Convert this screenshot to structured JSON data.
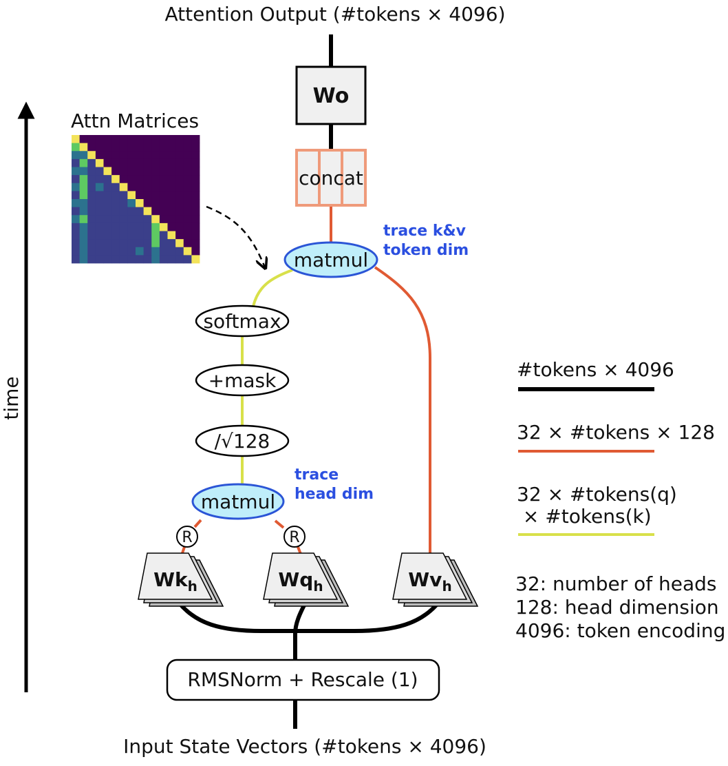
{
  "labels": {
    "output": "Attention Output (#tokens × 4096)",
    "input": "Input State Vectors (#tokens × 4096)",
    "time": "time",
    "attn_matrices": "Attn Matrices",
    "wo": "Wo",
    "concat": "concat",
    "matmul_top": "matmul",
    "matmul_bottom": "matmul",
    "softmax": "softmax",
    "mask": "+mask",
    "scale": "/√128",
    "rope_k": "R",
    "rope_q": "R",
    "wk": "Wk",
    "wq": "Wq",
    "wv": "Wv",
    "subscript": "h",
    "rmsnorm": "RMSNorm + Rescale (1)",
    "trace_kv": [
      "trace k&v",
      "token dim"
    ],
    "trace_head": [
      "trace",
      "head dim"
    ]
  },
  "legend": {
    "items": [
      {
        "lines": [
          "#tokens × 4096"
        ],
        "color": "#000000"
      },
      {
        "lines": [
          "32 × #tokens × 128"
        ],
        "color": "#e05a33"
      },
      {
        "lines": [
          "32 × #tokens(q)",
          " × #tokens(k)"
        ],
        "color": "#d8e04a"
      }
    ],
    "notes": [
      "32: number of heads",
      "128: head dimension",
      "4096: token encoding"
    ]
  },
  "colors": {
    "black_edge": "#000000",
    "orange_edge": "#e05a33",
    "yellow_edge": "#d8e04a",
    "matmul_fill": "#bfeefa",
    "matmul_stroke": "#2b55d6",
    "concat_stroke": "#ef9a7a",
    "box_fill": "#f0f0f0",
    "trace_text": "#2b4fe0"
  },
  "heatmap": {
    "grid": [
      [
        4,
        0,
        0,
        0,
        0,
        0,
        0,
        0,
        0,
        0,
        0,
        0,
        0,
        0,
        0,
        0
      ],
      [
        3,
        4,
        0,
        0,
        0,
        0,
        0,
        0,
        0,
        0,
        0,
        0,
        0,
        0,
        0,
        0
      ],
      [
        2,
        2,
        4,
        0,
        0,
        0,
        0,
        0,
        0,
        0,
        0,
        0,
        0,
        0,
        0,
        0
      ],
      [
        1,
        3,
        1,
        4,
        0,
        0,
        0,
        0,
        0,
        0,
        0,
        0,
        0,
        0,
        0,
        0
      ],
      [
        2,
        2,
        1,
        1,
        4,
        0,
        0,
        0,
        0,
        0,
        0,
        0,
        0,
        0,
        0,
        0
      ],
      [
        1,
        3,
        1,
        1,
        1,
        4,
        0,
        0,
        0,
        0,
        0,
        0,
        0,
        0,
        0,
        0
      ],
      [
        2,
        3,
        1,
        2,
        1,
        1,
        4,
        0,
        0,
        0,
        0,
        0,
        0,
        0,
        0,
        0
      ],
      [
        1,
        3,
        1,
        1,
        1,
        1,
        1,
        4,
        0,
        0,
        0,
        0,
        0,
        0,
        0,
        0
      ],
      [
        2,
        2,
        1,
        1,
        1,
        1,
        1,
        2,
        4,
        0,
        0,
        0,
        0,
        0,
        0,
        0
      ],
      [
        1,
        2,
        1,
        1,
        1,
        1,
        1,
        1,
        1,
        4,
        0,
        0,
        0,
        0,
        0,
        0
      ],
      [
        2,
        3,
        1,
        1,
        1,
        1,
        1,
        1,
        1,
        1,
        4,
        0,
        0,
        0,
        0,
        0
      ],
      [
        1,
        2,
        1,
        1,
        1,
        1,
        1,
        1,
        1,
        1,
        3,
        4,
        0,
        0,
        0,
        0
      ],
      [
        1,
        2,
        1,
        1,
        1,
        1,
        1,
        1,
        1,
        1,
        3,
        1,
        4,
        0,
        0,
        0
      ],
      [
        1,
        2,
        1,
        1,
        1,
        1,
        1,
        1,
        1,
        1,
        3,
        1,
        1,
        4,
        0,
        0
      ],
      [
        1,
        2,
        1,
        1,
        1,
        1,
        1,
        1,
        2,
        1,
        2,
        1,
        1,
        1,
        4,
        0
      ],
      [
        1,
        2,
        1,
        1,
        1,
        1,
        1,
        1,
        1,
        1,
        2,
        1,
        1,
        1,
        1,
        4
      ]
    ],
    "palette": [
      "#440154",
      "#3b3f8a",
      "#2c728e",
      "#5ec962",
      "#f3e35a"
    ]
  }
}
